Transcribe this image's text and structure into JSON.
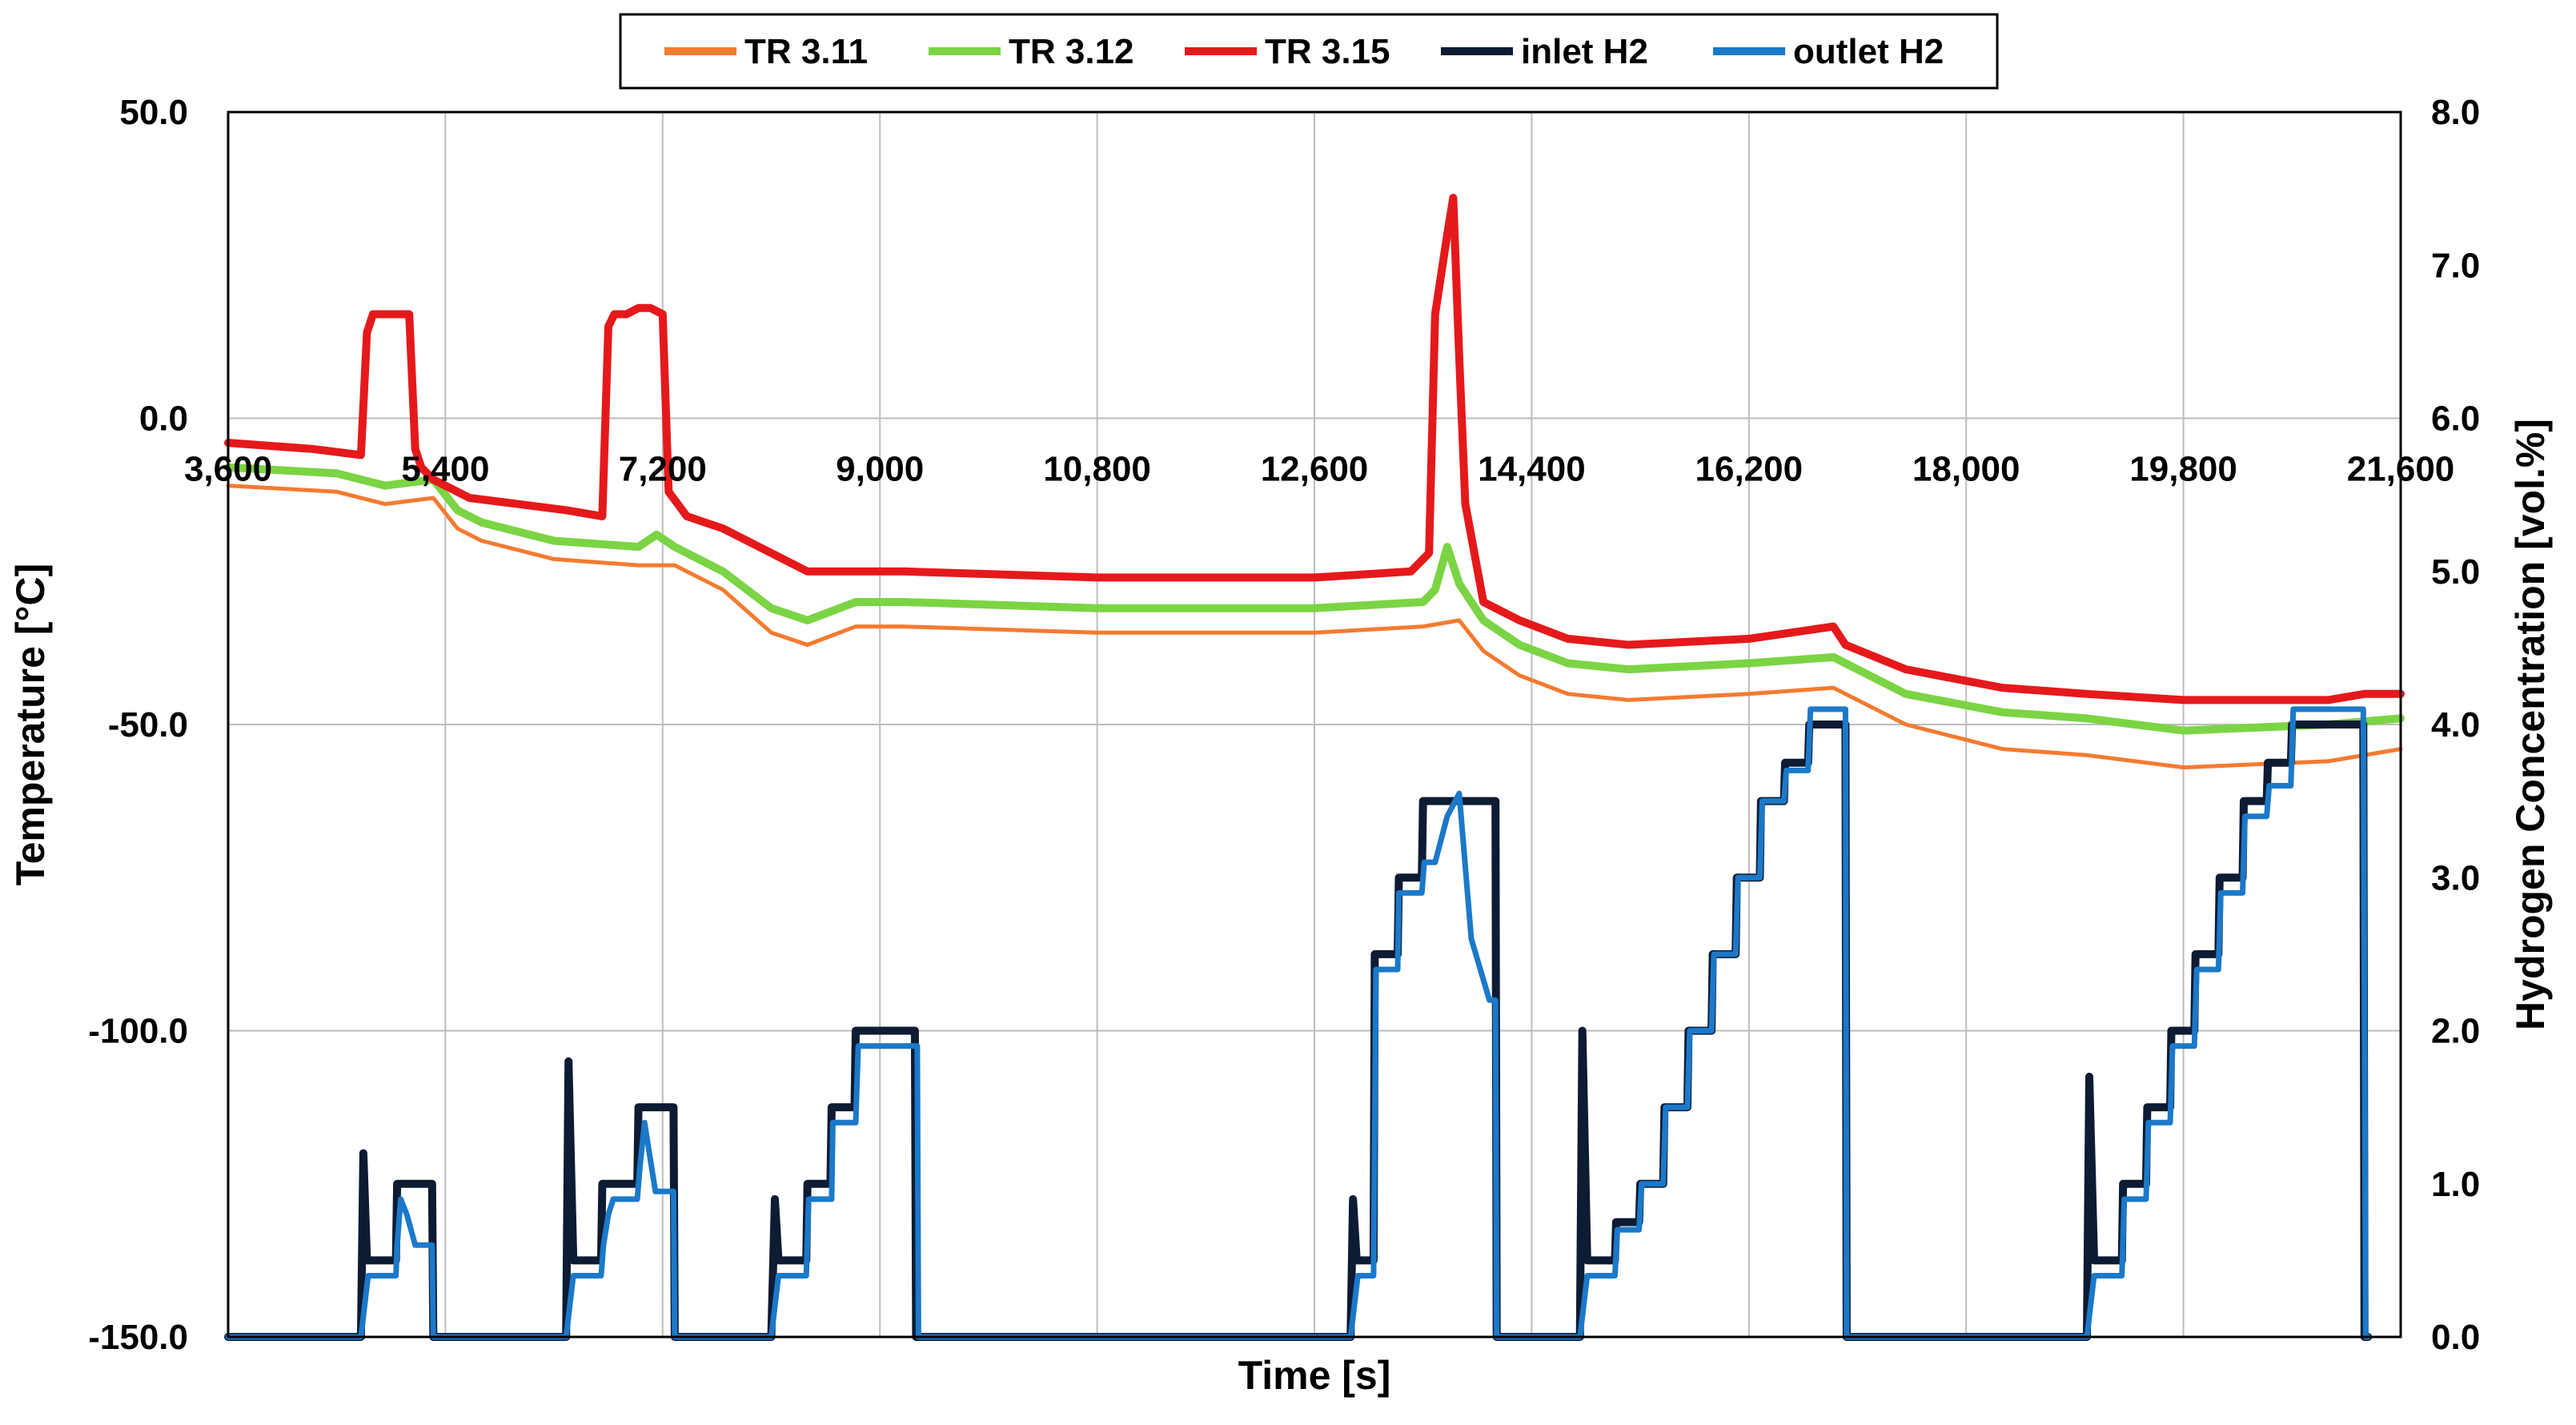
{
  "chart_data": {
    "type": "line",
    "title": "",
    "xlabel": "Time [s]",
    "ylabel": "Temperature [°C]",
    "y2label": "Hydrogen Concentration [vol.%]",
    "xlim": [
      3600,
      21600
    ],
    "ylim": [
      -150,
      50
    ],
    "y2lim": [
      0,
      8
    ],
    "xticks": [
      3600,
      5400,
      7200,
      9000,
      10800,
      12600,
      14400,
      16200,
      18000,
      19800,
      21600
    ],
    "xtick_labels": [
      "3,600",
      "5,400",
      "7,200",
      "9,000",
      "10,800",
      "12,600",
      "14,400",
      "16,200",
      "18,000",
      "19,800",
      "21,600"
    ],
    "yticks": [
      50,
      0,
      -50,
      -100,
      -150
    ],
    "ytick_labels": [
      "50.0",
      "0.0",
      "-50.0",
      "-100.0",
      "-150.0"
    ],
    "y2ticks": [
      8,
      7,
      6,
      5,
      4,
      3,
      2,
      1,
      0
    ],
    "y2tick_labels": [
      "8.0",
      "7.0",
      "6.0",
      "5.0",
      "4.0",
      "3.0",
      "2.0",
      "1.0",
      "0.0"
    ],
    "grid": true,
    "legend_position": "top",
    "series": [
      {
        "name": "TR 3.11",
        "axis": "left",
        "color": "#F47B30",
        "x": [
          3600,
          4500,
          4900,
          5300,
          5500,
          5700,
          6300,
          7000,
          7300,
          7700,
          8100,
          8400,
          8800,
          9200,
          10800,
          12600,
          13500,
          13800,
          14000,
          14300,
          14700,
          15200,
          16200,
          16900,
          17500,
          18300,
          19000,
          19800,
          21000,
          21600
        ],
        "y": [
          -11,
          -12,
          -14,
          -13,
          -18,
          -20,
          -23,
          -24,
          -24,
          -28,
          -35,
          -37,
          -34,
          -34,
          -35,
          -35,
          -34,
          -33,
          -38,
          -42,
          -45,
          -46,
          -45,
          -44,
          -50,
          -54,
          -55,
          -57,
          -56,
          -54
        ]
      },
      {
        "name": "TR 3.12",
        "axis": "left",
        "color": "#7BD443",
        "x": [
          3600,
          4500,
          4900,
          5300,
          5500,
          5700,
          6300,
          7000,
          7150,
          7300,
          7700,
          8100,
          8400,
          8800,
          9200,
          10800,
          12600,
          13500,
          13600,
          13700,
          13800,
          14000,
          14300,
          14700,
          15200,
          16200,
          16900,
          17000,
          17500,
          18300,
          19000,
          19800,
          21000,
          21600
        ],
        "y": [
          -8,
          -9,
          -11,
          -10,
          -15,
          -17,
          -20,
          -21,
          -19,
          -21,
          -25,
          -31,
          -33,
          -30,
          -30,
          -31,
          -31,
          -30,
          -28,
          -21,
          -27,
          -33,
          -37,
          -40,
          -41,
          -40,
          -39,
          -40,
          -45,
          -48,
          -49,
          -51,
          -50,
          -49
        ]
      },
      {
        "name": "TR 3.15",
        "axis": "left",
        "color": "#E5191B",
        "x": [
          3600,
          4300,
          4700,
          4750,
          4800,
          4900,
          5100,
          5150,
          5200,
          5300,
          5600,
          6000,
          6400,
          6700,
          6750,
          6800,
          6900,
          7000,
          7100,
          7200,
          7250,
          7400,
          7700,
          8100,
          8400,
          8800,
          9200,
          10800,
          12600,
          13400,
          13550,
          13600,
          13700,
          13750,
          13800,
          13850,
          14000,
          14300,
          14700,
          15200,
          16200,
          16900,
          17000,
          17500,
          18300,
          19000,
          19800,
          21000,
          21300,
          21600
        ],
        "y": [
          -4,
          -5,
          -6,
          14,
          17,
          17,
          17,
          -5,
          -8,
          -10,
          -13,
          -14,
          -15,
          -16,
          15,
          17,
          17,
          18,
          18,
          17,
          -12,
          -16,
          -18,
          -22,
          -25,
          -25,
          -25,
          -26,
          -26,
          -25,
          -22,
          17,
          30,
          36,
          10,
          -14,
          -30,
          -33,
          -36,
          -37,
          -36,
          -34,
          -37,
          -41,
          -44,
          -45,
          -46,
          -46,
          -45,
          -45
        ]
      },
      {
        "name": "inlet H2",
        "axis": "right",
        "color": "#0D1B33",
        "x": [
          3600,
          4700,
          4720,
          4750,
          4800,
          4990,
          5000,
          5290,
          5300,
          5310,
          6400,
          6420,
          6460,
          6500,
          6690,
          6700,
          6990,
          7000,
          7290,
          7300,
          7440,
          7450,
          8100,
          8130,
          8160,
          8200,
          8390,
          8400,
          8590,
          8600,
          8790,
          8800,
          8990,
          9000,
          9290,
          9300,
          9310,
          12900,
          12920,
          12950,
          13000,
          13090,
          13100,
          13290,
          13300,
          13490,
          13500,
          13690,
          13700,
          14100,
          14110,
          14120,
          14800,
          14820,
          14860,
          14900,
          15090,
          15100,
          15290,
          15300,
          15490,
          15500,
          15690,
          15700,
          15890,
          15900,
          16090,
          16100,
          16290,
          16300,
          16490,
          16500,
          16690,
          16700,
          16890,
          16900,
          17000,
          17010,
          17020,
          19000,
          19020,
          19060,
          19100,
          19290,
          19300,
          19490,
          19500,
          19690,
          19700,
          19890,
          19900,
          20090,
          20100,
          20290,
          20300,
          20490,
          20500,
          20690,
          20700,
          20890,
          20900,
          21090,
          21100,
          21290,
          21300,
          21320,
          21330
        ],
        "y": [
          0,
          0,
          1.2,
          0.5,
          0.5,
          0.5,
          1.0,
          1.0,
          0,
          0,
          0,
          1.8,
          0.5,
          0.5,
          0.5,
          1.0,
          1.0,
          1.5,
          1.5,
          0,
          0,
          0,
          0,
          0.9,
          0.5,
          0.5,
          0.5,
          1.0,
          1.0,
          1.5,
          1.5,
          2.0,
          2.0,
          2.0,
          2.0,
          0,
          0,
          0,
          0.9,
          0.5,
          0.5,
          0.5,
          2.5,
          2.5,
          3.0,
          3.0,
          3.5,
          3.5,
          3.5,
          3.5,
          0,
          0,
          0,
          2.0,
          0.5,
          0.5,
          0.5,
          0.75,
          0.75,
          1.0,
          1.0,
          1.5,
          1.5,
          2.0,
          2.0,
          2.5,
          2.5,
          3.0,
          3.0,
          3.5,
          3.5,
          3.75,
          3.75,
          4.0,
          4.0,
          4.0,
          4.0,
          0,
          0,
          0,
          1.7,
          0.5,
          0.5,
          0.5,
          1.0,
          1.0,
          1.5,
          1.5,
          2.0,
          2.0,
          2.5,
          2.5,
          3.0,
          3.0,
          3.5,
          3.5,
          3.75,
          3.75,
          4.0,
          4.0,
          4.0,
          4.0,
          4.0,
          4.0,
          0,
          0,
          0
        ]
      },
      {
        "name": "outlet H2",
        "axis": "right",
        "color": "#1B79C9",
        "x": [
          3600,
          4700,
          4760,
          4780,
          4800,
          4990,
          5000,
          5030,
          5080,
          5150,
          5290,
          5300,
          5310,
          6400,
          6460,
          6480,
          6500,
          6690,
          6710,
          6750,
          6790,
          6990,
          7010,
          7050,
          7090,
          7140,
          7200,
          7250,
          7290,
          7300,
          7440,
          7450,
          8100,
          8160,
          8180,
          8200,
          8390,
          8410,
          8450,
          8600,
          8610,
          8800,
          8820,
          8990,
          9310,
          9320,
          9330,
          12900,
          12960,
          12980,
          13000,
          13090,
          13110,
          13290,
          13300,
          13490,
          13510,
          13600,
          13700,
          13800,
          13900,
          14050,
          14100,
          14110,
          14800,
          14860,
          14880,
          14900,
          15090,
          15110,
          15290,
          15310,
          15490,
          15510,
          15690,
          15710,
          15890,
          15910,
          16090,
          16110,
          16290,
          16310,
          16490,
          16510,
          16690,
          16710,
          16890,
          16910,
          17000,
          17010,
          17020,
          19000,
          19060,
          19080,
          19100,
          19290,
          19310,
          19490,
          19510,
          19690,
          19710,
          19890,
          19910,
          20090,
          20110,
          20290,
          20310,
          20490,
          20510,
          20690,
          20710,
          20890,
          20910,
          21090,
          21110,
          21290,
          21310,
          21330
        ],
        "y": [
          0,
          0,
          0.4,
          0.4,
          0.4,
          0.4,
          0.6,
          0.9,
          0.8,
          0.6,
          0.6,
          0,
          0,
          0,
          0.4,
          0.4,
          0.4,
          0.4,
          0.6,
          0.8,
          0.9,
          0.9,
          1.1,
          1.4,
          1.2,
          0.95,
          0.95,
          0.95,
          0.95,
          0,
          0,
          0,
          0,
          0.4,
          0.4,
          0.4,
          0.4,
          0.9,
          0.9,
          0.9,
          1.4,
          1.4,
          1.9,
          1.9,
          1.9,
          0,
          0,
          0,
          0.4,
          0.4,
          0.4,
          0.4,
          2.4,
          2.4,
          2.9,
          2.9,
          3.1,
          3.1,
          3.4,
          3.55,
          2.6,
          2.2,
          2.2,
          0,
          0,
          0.4,
          0.4,
          0.4,
          0.4,
          0.7,
          0.7,
          1.0,
          1.0,
          1.5,
          1.5,
          2.0,
          2.0,
          2.5,
          2.5,
          3.0,
          3.0,
          3.5,
          3.5,
          3.7,
          3.7,
          4.1,
          4.1,
          4.1,
          4.1,
          0,
          0,
          0,
          0.4,
          0.4,
          0.4,
          0.4,
          0.9,
          0.9,
          1.4,
          1.4,
          1.9,
          1.9,
          2.4,
          2.4,
          2.9,
          2.9,
          3.4,
          3.4,
          3.6,
          3.6,
          4.1,
          4.1,
          4.1,
          4.1,
          4.1,
          4.1,
          0,
          0
        ]
      }
    ]
  }
}
